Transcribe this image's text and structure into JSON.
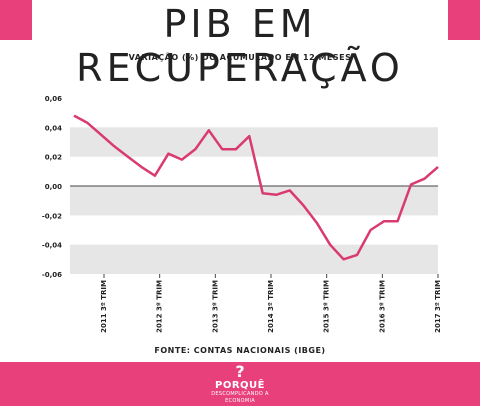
{
  "header": {
    "title": "PIB EM RECUPERAÇÃO",
    "subtitle": "VARIAÇÃO (%) DO ACUMULADO EM 12 MESES"
  },
  "footer": {
    "source": "FONTE: CONTAS NACIONAIS (IBGE)",
    "logo_name": "PORQUÊ",
    "logo_tagline": "DESCOMPLICANDO A ECONOMIA"
  },
  "colors": {
    "accent": "#e8407a",
    "line": "#d93b6f",
    "band": "#e6e6e6"
  },
  "chart_data": {
    "type": "line",
    "title": "PIB EM RECUPERAÇÃO",
    "subtitle": "VARIAÇÃO (%) DO ACUMULADO EM 12 MESES",
    "xlabel": "",
    "ylabel": "",
    "ylim": [
      -0.06,
      0.06
    ],
    "yticks": [
      "0,06",
      "0,04",
      "0,02",
      "0,00",
      "-0,02",
      "-0,04",
      "-0,06"
    ],
    "xtick_labels": [
      "2011 3º TRIM",
      "2012 3º TRIM",
      "2013 3º TRIM",
      "2014 3º TRIM",
      "2015 3º TRIM",
      "2016 3º TRIM",
      "2017 3º TRIM"
    ],
    "grid": "alternating horizontal bands",
    "series": [
      {
        "values": [
          0.048,
          0.043,
          0.035,
          0.027,
          0.02,
          0.013,
          0.007,
          0.022,
          0.018,
          0.025,
          0.038,
          0.025,
          0.025,
          0.034,
          -0.005,
          -0.006,
          -0.003,
          -0.013,
          -0.025,
          -0.04,
          -0.05,
          -0.047,
          -0.03,
          -0.024,
          -0.024,
          0.001,
          0.005,
          0.013
        ]
      }
    ]
  }
}
